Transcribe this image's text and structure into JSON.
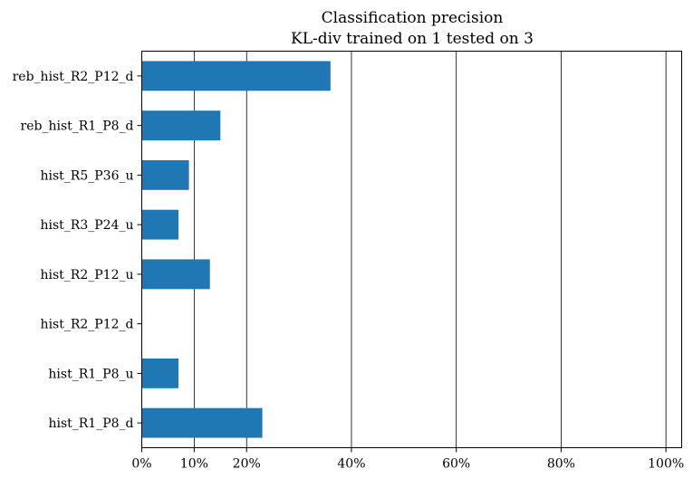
{
  "chart_data": {
    "type": "bar",
    "orientation": "horizontal",
    "title": "Classification precision",
    "subtitle": "KL-div trained on 1 tested on 3",
    "xlabel": "",
    "ylabel": "",
    "categories": [
      "reb_hist_R2_P12_d",
      "reb_hist_R1_P8_d",
      "hist_R5_P36_u",
      "hist_R3_P24_u",
      "hist_R2_P12_u",
      "hist_R2_P12_d",
      "hist_R1_P8_u",
      "hist_R1_P8_d"
    ],
    "values": [
      0.36,
      0.15,
      0.09,
      0.07,
      0.13,
      0.0,
      0.07,
      0.23
    ],
    "xlim": [
      0,
      1.03
    ],
    "xticks": [
      0,
      0.1,
      0.2,
      0.4,
      0.6,
      0.8,
      1.0
    ],
    "xtick_labels": [
      "0%",
      "10%",
      "20%",
      "40%",
      "60%",
      "80%",
      "100%"
    ],
    "grid": "vertical",
    "bar_color": "#1f77b4"
  }
}
